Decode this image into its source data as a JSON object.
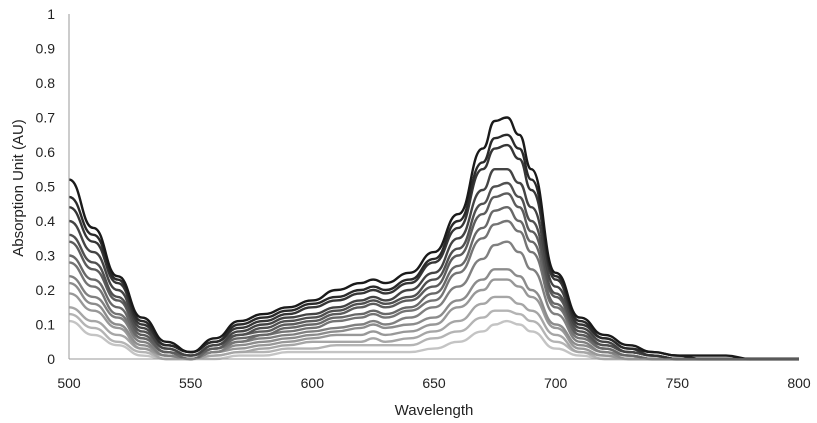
{
  "chart_data": {
    "type": "line",
    "title": "",
    "xlabel": "Wavelength",
    "ylabel": "Absorption Unit (AU)",
    "xlim": [
      500,
      800
    ],
    "ylim": [
      0,
      1
    ],
    "x_ticks": [
      "500",
      "550",
      "600",
      "650",
      "700",
      "750",
      "800"
    ],
    "y_ticks": [
      "0",
      "0.1",
      "0.2",
      "0.3",
      "0.4",
      "0.5",
      "0.6",
      "0.7",
      "0.8",
      "0.9",
      "1"
    ],
    "grid": false,
    "legend": "none",
    "x": [
      500,
      510,
      520,
      530,
      540,
      550,
      560,
      570,
      580,
      590,
      600,
      610,
      620,
      625,
      630,
      640,
      650,
      660,
      670,
      675,
      680,
      685,
      690,
      700,
      710,
      720,
      730,
      740,
      750,
      760,
      770,
      780,
      790,
      800
    ],
    "series": [
      {
        "color": "#1a1a1a",
        "values": [
          0.52,
          0.38,
          0.24,
          0.12,
          0.05,
          0.02,
          0.06,
          0.11,
          0.13,
          0.15,
          0.17,
          0.2,
          0.22,
          0.23,
          0.22,
          0.25,
          0.31,
          0.42,
          0.61,
          0.69,
          0.7,
          0.65,
          0.55,
          0.25,
          0.12,
          0.07,
          0.04,
          0.02,
          0.01,
          0.01,
          0.01,
          0.0,
          0.0,
          0.0
        ]
      },
      {
        "color": "#2a2a2a",
        "values": [
          0.47,
          0.36,
          0.23,
          0.11,
          0.04,
          0.02,
          0.05,
          0.1,
          0.12,
          0.14,
          0.16,
          0.18,
          0.2,
          0.21,
          0.2,
          0.23,
          0.29,
          0.4,
          0.57,
          0.64,
          0.65,
          0.61,
          0.52,
          0.24,
          0.11,
          0.06,
          0.03,
          0.02,
          0.01,
          0.0,
          0.0,
          0.0,
          0.0,
          0.0
        ]
      },
      {
        "color": "#363636",
        "values": [
          0.44,
          0.34,
          0.22,
          0.1,
          0.04,
          0.02,
          0.05,
          0.09,
          0.11,
          0.13,
          0.15,
          0.17,
          0.19,
          0.2,
          0.19,
          0.22,
          0.28,
          0.38,
          0.55,
          0.61,
          0.62,
          0.58,
          0.49,
          0.23,
          0.1,
          0.06,
          0.03,
          0.01,
          0.0,
          0.0,
          0.0,
          0.0,
          0.0,
          0.0
        ]
      },
      {
        "color": "#444444",
        "values": [
          0.4,
          0.31,
          0.2,
          0.09,
          0.03,
          0.01,
          0.04,
          0.08,
          0.1,
          0.12,
          0.13,
          0.15,
          0.17,
          0.18,
          0.17,
          0.2,
          0.25,
          0.35,
          0.49,
          0.55,
          0.55,
          0.51,
          0.44,
          0.21,
          0.09,
          0.05,
          0.02,
          0.01,
          0.0,
          0.0,
          0.0,
          0.0,
          0.0,
          0.0
        ]
      },
      {
        "color": "#505050",
        "values": [
          0.36,
          0.28,
          0.18,
          0.08,
          0.03,
          0.01,
          0.04,
          0.07,
          0.09,
          0.11,
          0.12,
          0.14,
          0.16,
          0.17,
          0.16,
          0.18,
          0.23,
          0.32,
          0.45,
          0.5,
          0.51,
          0.47,
          0.4,
          0.19,
          0.08,
          0.04,
          0.02,
          0.01,
          0.0,
          0.0,
          0.0,
          0.0,
          0.0,
          0.0
        ]
      },
      {
        "color": "#5c5c5c",
        "values": [
          0.34,
          0.26,
          0.17,
          0.07,
          0.02,
          0.01,
          0.03,
          0.07,
          0.08,
          0.1,
          0.11,
          0.13,
          0.15,
          0.16,
          0.15,
          0.17,
          0.21,
          0.3,
          0.42,
          0.47,
          0.48,
          0.44,
          0.37,
          0.18,
          0.07,
          0.04,
          0.02,
          0.01,
          0.0,
          0.0,
          0.0,
          0.0,
          0.0,
          0.0
        ]
      },
      {
        "color": "#686868",
        "values": [
          0.3,
          0.23,
          0.15,
          0.06,
          0.02,
          0.0,
          0.03,
          0.06,
          0.07,
          0.09,
          0.1,
          0.12,
          0.13,
          0.14,
          0.13,
          0.15,
          0.19,
          0.27,
          0.38,
          0.43,
          0.44,
          0.4,
          0.34,
          0.16,
          0.07,
          0.03,
          0.01,
          0.0,
          0.0,
          0.0,
          0.0,
          0.0,
          0.0,
          0.0
        ]
      },
      {
        "color": "#747474",
        "values": [
          0.28,
          0.21,
          0.13,
          0.06,
          0.02,
          0.0,
          0.03,
          0.05,
          0.07,
          0.08,
          0.09,
          0.11,
          0.12,
          0.13,
          0.12,
          0.14,
          0.17,
          0.25,
          0.35,
          0.39,
          0.4,
          0.37,
          0.31,
          0.15,
          0.06,
          0.03,
          0.01,
          0.0,
          0.0,
          0.0,
          0.0,
          0.0,
          0.0,
          0.0
        ]
      },
      {
        "color": "#808080",
        "values": [
          0.24,
          0.18,
          0.12,
          0.05,
          0.01,
          0.0,
          0.02,
          0.05,
          0.06,
          0.07,
          0.08,
          0.09,
          0.1,
          0.11,
          0.1,
          0.12,
          0.15,
          0.21,
          0.29,
          0.33,
          0.34,
          0.31,
          0.26,
          0.13,
          0.05,
          0.02,
          0.01,
          0.0,
          0.0,
          0.0,
          0.0,
          0.0,
          0.0,
          0.0
        ]
      },
      {
        "color": "#8c8c8c",
        "values": [
          0.22,
          0.16,
          0.1,
          0.04,
          0.01,
          0.0,
          0.02,
          0.04,
          0.05,
          0.06,
          0.07,
          0.08,
          0.09,
          0.1,
          0.09,
          0.1,
          0.12,
          0.17,
          0.23,
          0.26,
          0.26,
          0.24,
          0.2,
          0.1,
          0.04,
          0.02,
          0.0,
          0.0,
          0.0,
          0.0,
          0.0,
          0.0,
          0.0,
          0.0
        ]
      },
      {
        "color": "#989898",
        "values": [
          0.19,
          0.14,
          0.09,
          0.03,
          0.01,
          0.0,
          0.02,
          0.03,
          0.04,
          0.05,
          0.06,
          0.07,
          0.07,
          0.08,
          0.07,
          0.08,
          0.1,
          0.15,
          0.2,
          0.23,
          0.23,
          0.21,
          0.18,
          0.09,
          0.03,
          0.01,
          0.0,
          0.0,
          0.0,
          0.0,
          0.0,
          0.0,
          0.0,
          0.0
        ]
      },
      {
        "color": "#a6a6a6",
        "values": [
          0.15,
          0.11,
          0.07,
          0.03,
          0.0,
          0.0,
          0.01,
          0.02,
          0.03,
          0.04,
          0.05,
          0.05,
          0.05,
          0.06,
          0.05,
          0.06,
          0.08,
          0.11,
          0.16,
          0.18,
          0.18,
          0.16,
          0.14,
          0.07,
          0.02,
          0.01,
          0.0,
          0.0,
          0.0,
          0.0,
          0.0,
          0.0,
          0.0,
          0.0
        ]
      },
      {
        "color": "#b4b4b4",
        "values": [
          0.13,
          0.09,
          0.05,
          0.02,
          0.0,
          0.0,
          0.01,
          0.02,
          0.02,
          0.03,
          0.03,
          0.04,
          0.04,
          0.04,
          0.04,
          0.04,
          0.06,
          0.08,
          0.12,
          0.14,
          0.14,
          0.13,
          0.11,
          0.05,
          0.02,
          0.0,
          0.0,
          0.0,
          0.0,
          0.0,
          0.0,
          0.0,
          0.0,
          0.0
        ]
      },
      {
        "color": "#c4c4c4",
        "values": [
          0.11,
          0.07,
          0.04,
          0.01,
          0.0,
          0.0,
          0.0,
          0.01,
          0.01,
          0.02,
          0.02,
          0.02,
          0.02,
          0.02,
          0.02,
          0.02,
          0.03,
          0.05,
          0.08,
          0.1,
          0.11,
          0.1,
          0.08,
          0.03,
          0.01,
          0.0,
          0.0,
          0.0,
          0.0,
          0.0,
          0.0,
          0.0,
          0.0,
          0.0
        ]
      }
    ]
  }
}
